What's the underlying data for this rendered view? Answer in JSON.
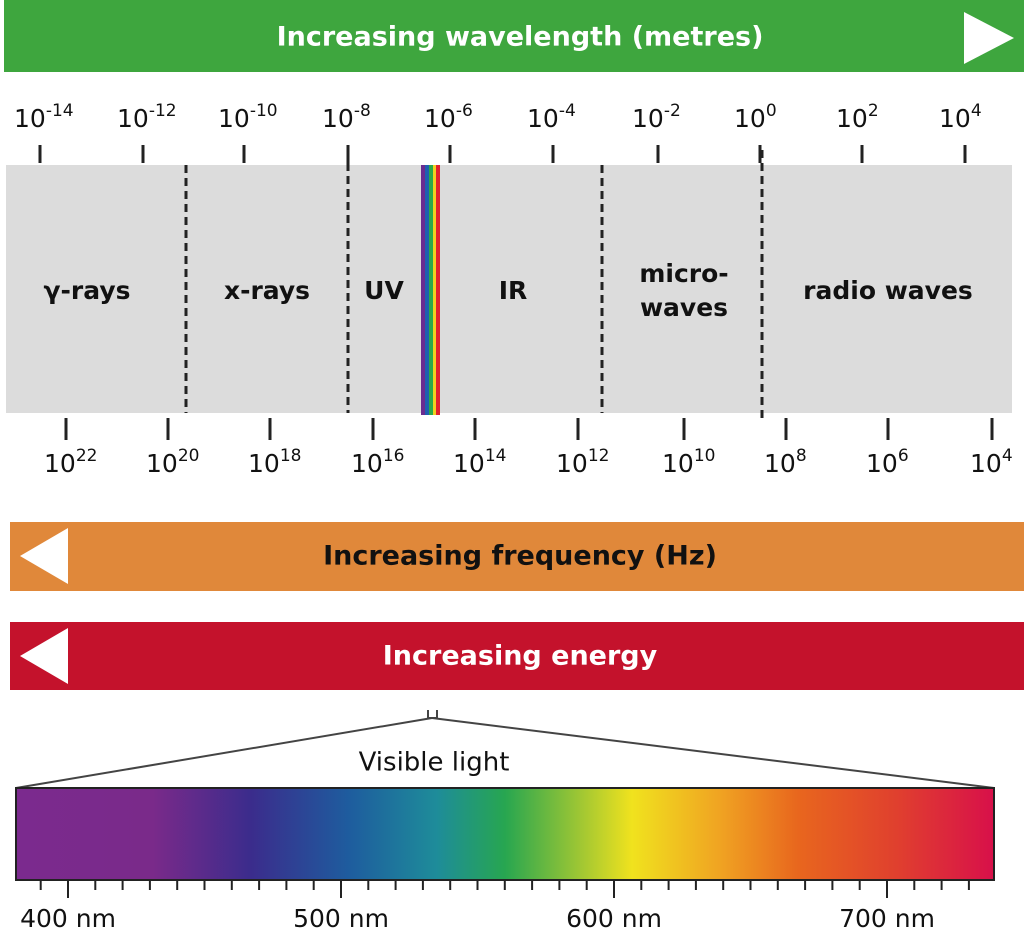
{
  "wavelength_bar": {
    "title": "Increasing wavelength (metres)"
  },
  "wavelength_ticks": [
    {
      "base": "10",
      "exponent": "-14"
    },
    {
      "base": "10",
      "exponent": "-12"
    },
    {
      "base": "10",
      "exponent": "-10"
    },
    {
      "base": "10",
      "exponent": "-8"
    },
    {
      "base": "10",
      "exponent": "-6"
    },
    {
      "base": "10",
      "exponent": "-4"
    },
    {
      "base": "10",
      "exponent": "-2"
    },
    {
      "base": "10",
      "exponent": "0"
    },
    {
      "base": "10",
      "exponent": "2"
    },
    {
      "base": "10",
      "exponent": "4"
    }
  ],
  "regions": [
    {
      "lines": [
        "γ-rays"
      ]
    },
    {
      "lines": [
        "x-rays"
      ]
    },
    {
      "lines": [
        "UV"
      ]
    },
    {
      "lines": [
        "IR"
      ]
    },
    {
      "lines": [
        "micro-",
        "waves"
      ]
    },
    {
      "lines": [
        "radio waves"
      ]
    }
  ],
  "frequency_ticks": [
    {
      "base": "10",
      "exponent": "22"
    },
    {
      "base": "10",
      "exponent": "20"
    },
    {
      "base": "10",
      "exponent": "18"
    },
    {
      "base": "10",
      "exponent": "16"
    },
    {
      "base": "10",
      "exponent": "14"
    },
    {
      "base": "10",
      "exponent": "12"
    },
    {
      "base": "10",
      "exponent": "10"
    },
    {
      "base": "10",
      "exponent": "8"
    },
    {
      "base": "10",
      "exponent": "6"
    },
    {
      "base": "10",
      "exponent": "4"
    }
  ],
  "frequency_bar": {
    "title": "Increasing frequency (Hz)"
  },
  "energy_bar": {
    "title": "Increasing energy"
  },
  "visible_light": {
    "label": "Visible light",
    "ticks": [
      "400 nm",
      "500 nm",
      "600 nm",
      "700 nm"
    ]
  }
}
